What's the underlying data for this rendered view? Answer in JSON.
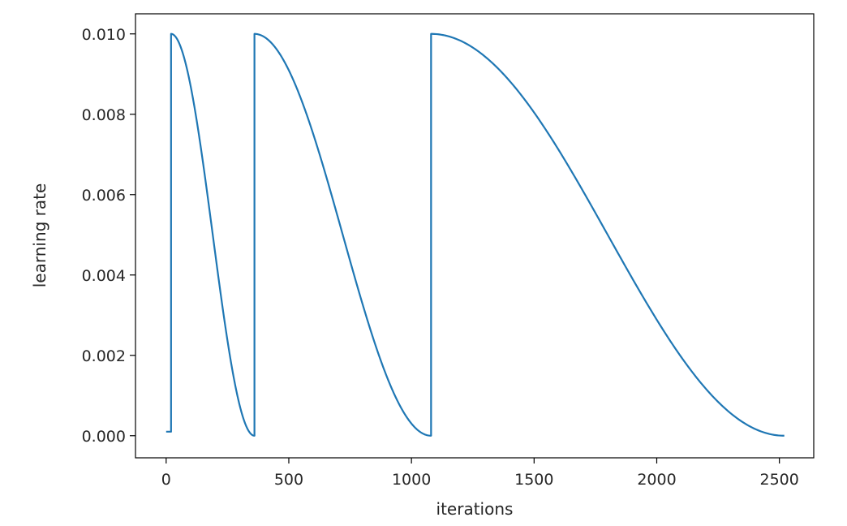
{
  "chart_data": {
    "type": "line",
    "title": "",
    "xlabel": "iterations",
    "ylabel": "learning rate",
    "xlim": [
      -125,
      2640
    ],
    "ylim": [
      -0.00055,
      0.0105
    ],
    "x_ticks": [
      0,
      500,
      1000,
      1500,
      2000,
      2500
    ],
    "x_tick_labels": [
      "0",
      "500",
      "1000",
      "1500",
      "2000",
      "2500"
    ],
    "y_ticks": [
      0.0,
      0.002,
      0.004,
      0.006,
      0.008,
      0.01
    ],
    "y_tick_labels": [
      "0.000",
      "0.002",
      "0.004",
      "0.006",
      "0.008",
      "0.010"
    ],
    "grid": false,
    "legend": "none",
    "line_color": "#1f77b4",
    "series": [
      {
        "warmup": {
          "start": 0,
          "end": 20,
          "value": 0.0001
        },
        "cycles": [
          {
            "start": 20,
            "end": 360,
            "max_lr": 0.01,
            "min_lr": 0.0
          },
          {
            "start": 360,
            "end": 1080,
            "max_lr": 0.01,
            "min_lr": 0.0
          },
          {
            "start": 1080,
            "end": 2520,
            "max_lr": 0.01,
            "min_lr": 0.0
          }
        ]
      }
    ]
  }
}
